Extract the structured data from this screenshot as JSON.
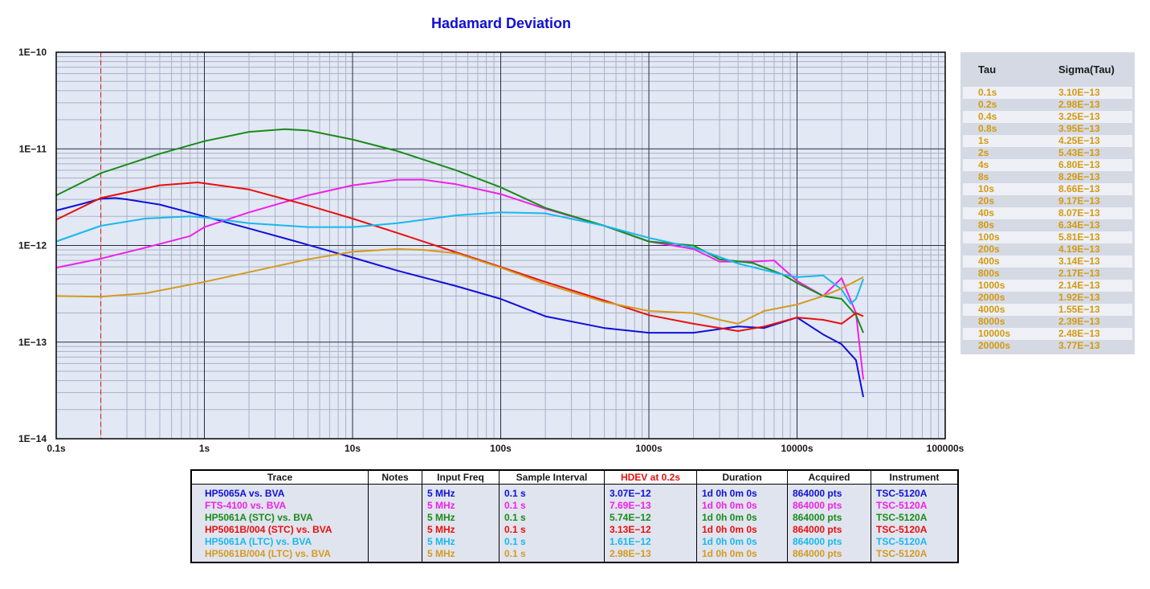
{
  "chart_data": {
    "type": "line",
    "title": "Hadamard Deviation",
    "xscale": "log",
    "yscale": "log",
    "xlim": [
      0.1,
      100000
    ],
    "ylim": [
      1e-14,
      1e-10
    ],
    "x_tick_labels": [
      "0.1s",
      "1s",
      "10s",
      "100s",
      "1000s",
      "10000s",
      "100000s"
    ],
    "y_tick_labels": [
      "1E−10",
      "1E−11",
      "1E−12",
      "1E−13",
      "1E−14"
    ],
    "grid": true,
    "marker_line_x": 0.2,
    "series": [
      {
        "name": "HP5065A vs. BVA",
        "color": "#1010d8",
        "x": [
          0.1,
          0.15,
          0.2,
          0.25,
          0.3,
          0.5,
          1,
          2,
          4,
          10,
          20,
          50,
          100,
          200,
          500,
          1000,
          2000,
          4000,
          6000,
          10000,
          15000,
          20000,
          25000,
          28000
        ],
        "y": [
          2.3e-12,
          2.7e-12,
          3.05e-12,
          3.1e-12,
          3e-12,
          2.65e-12,
          2e-12,
          1.5e-12,
          1.12e-12,
          7.5e-13,
          5.5e-13,
          3.8e-13,
          2.8e-13,
          1.85e-13,
          1.4e-13,
          1.25e-13,
          1.25e-13,
          1.45e-13,
          1.4e-13,
          1.8e-13,
          1.2e-13,
          9.5e-14,
          6.5e-14,
          2.7e-14
        ]
      },
      {
        "name": "FTS-4100 vs. BVA",
        "color": "#f020e8",
        "x": [
          0.1,
          0.2,
          0.4,
          0.8,
          1,
          2,
          5,
          10,
          20,
          30,
          50,
          100,
          200,
          500,
          1000,
          2000,
          3000,
          5000,
          7000,
          10000,
          15000,
          20000,
          25000,
          28000
        ],
        "y": [
          5.9e-13,
          7.3e-13,
          9.5e-13,
          1.25e-12,
          1.55e-12,
          2.2e-12,
          3.3e-12,
          4.2e-12,
          4.8e-12,
          4.8e-12,
          4.3e-12,
          3.4e-12,
          2.4e-12,
          1.6e-12,
          1.1e-12,
          9.2e-13,
          6.8e-13,
          6.8e-13,
          7e-13,
          4.3e-13,
          3e-13,
          4.6e-13,
          2e-13,
          4.1e-14
        ]
      },
      {
        "name": "HP5061A (STC) vs. BVA",
        "color": "#1a8a1a",
        "x": [
          0.1,
          0.2,
          0.5,
          1,
          2,
          3.5,
          5,
          10,
          20,
          50,
          100,
          200,
          500,
          1000,
          2000,
          3000,
          5000,
          8000,
          10000,
          15000,
          20000,
          25000,
          28000
        ],
        "y": [
          3.3e-12,
          5.6e-12,
          8.9e-12,
          1.2e-11,
          1.5e-11,
          1.6e-11,
          1.55e-11,
          1.25e-11,
          9.5e-12,
          6e-12,
          4e-12,
          2.45e-12,
          1.6e-12,
          1.1e-12,
          1e-12,
          7.2e-13,
          6.6e-13,
          5e-13,
          4.1e-13,
          3e-13,
          2.8e-13,
          1.9e-13,
          1.25e-13
        ]
      },
      {
        "name": "HP5061B/004 (STC) vs. BVA",
        "color": "#e81010",
        "x": [
          0.1,
          0.2,
          0.5,
          0.9,
          1,
          2,
          5,
          10,
          20,
          50,
          100,
          200,
          500,
          1000,
          2000,
          4000,
          6000,
          10000,
          15000,
          20000,
          25000,
          28000
        ],
        "y": [
          1.85e-12,
          3.1e-12,
          4.2e-12,
          4.5e-12,
          4.4e-12,
          3.8e-12,
          2.6e-12,
          1.9e-12,
          1.35e-12,
          8.5e-13,
          6e-13,
          4.2e-13,
          2.7e-13,
          1.9e-13,
          1.55e-13,
          1.3e-13,
          1.45e-13,
          1.8e-13,
          1.7e-13,
          1.55e-13,
          2e-13,
          1.85e-13
        ]
      },
      {
        "name": "HP5061A (LTC) vs. BVA",
        "color": "#18b8ee",
        "x": [
          0.1,
          0.2,
          0.4,
          0.8,
          1,
          2,
          5,
          10,
          20,
          50,
          100,
          200,
          500,
          1000,
          2000,
          4000,
          8000,
          10000,
          15000,
          20000,
          23000,
          25000,
          28000
        ],
        "y": [
          1.1e-12,
          1.6e-12,
          1.9e-12,
          2e-12,
          1.95e-12,
          1.7e-12,
          1.55e-12,
          1.55e-12,
          1.7e-12,
          2.05e-12,
          2.2e-12,
          2.15e-12,
          1.6e-12,
          1.2e-12,
          9.5e-13,
          6.5e-13,
          5e-13,
          4.7e-13,
          4.9e-13,
          3.5e-13,
          2.5e-13,
          2.8e-13,
          4.5e-13
        ]
      },
      {
        "name": "HP5061B/004 (LTC) vs. BVA",
        "color": "#d49a20",
        "x": [
          0.1,
          0.2,
          0.4,
          1,
          2,
          5,
          10,
          20,
          30,
          50,
          100,
          200,
          500,
          1000,
          2000,
          3000,
          4000,
          6000,
          10000,
          15000,
          20000,
          28000
        ],
        "y": [
          3e-13,
          2.95e-13,
          3.2e-13,
          4.2e-13,
          5.3e-13,
          7.2e-13,
          8.6e-13,
          9.2e-13,
          9e-13,
          8.3e-13,
          5.9e-13,
          4e-13,
          2.6e-13,
          2.1e-13,
          2e-13,
          1.7e-13,
          1.55e-13,
          2.1e-13,
          2.45e-13,
          3e-13,
          3.6e-13,
          4.7e-13
        ]
      }
    ]
  },
  "tau_table": {
    "header_tau": "Tau",
    "header_sigma": "Sigma(Tau)",
    "rows": [
      {
        "tau": "0.1s",
        "sigma": "3.10E−13"
      },
      {
        "tau": "0.2s",
        "sigma": "2.98E−13"
      },
      {
        "tau": "0.4s",
        "sigma": "3.25E−13"
      },
      {
        "tau": "0.8s",
        "sigma": "3.95E−13"
      },
      {
        "tau": "1s",
        "sigma": "4.25E−13"
      },
      {
        "tau": "2s",
        "sigma": "5.43E−13"
      },
      {
        "tau": "4s",
        "sigma": "6.80E−13"
      },
      {
        "tau": "8s",
        "sigma": "8.29E−13"
      },
      {
        "tau": "10s",
        "sigma": "8.66E−13"
      },
      {
        "tau": "20s",
        "sigma": "9.17E−13"
      },
      {
        "tau": "40s",
        "sigma": "8.07E−13"
      },
      {
        "tau": "80s",
        "sigma": "6.34E−13"
      },
      {
        "tau": "100s",
        "sigma": "5.81E−13"
      },
      {
        "tau": "200s",
        "sigma": "4.19E−13"
      },
      {
        "tau": "400s",
        "sigma": "3.14E−13"
      },
      {
        "tau": "800s",
        "sigma": "2.17E−13"
      },
      {
        "tau": "1000s",
        "sigma": "2.14E−13"
      },
      {
        "tau": "2000s",
        "sigma": "1.92E−13"
      },
      {
        "tau": "4000s",
        "sigma": "1.55E−13"
      },
      {
        "tau": "8000s",
        "sigma": "2.39E−13"
      },
      {
        "tau": "10000s",
        "sigma": "2.48E−13"
      },
      {
        "tau": "20000s",
        "sigma": "3.77E−13"
      }
    ]
  },
  "trace_table": {
    "headers": [
      "Trace",
      "Notes",
      "Input Freq",
      "Sample Interval",
      "HDEV at 0.2s",
      "Duration",
      "Acquired",
      "Instrument"
    ],
    "hdev_header_color": "#e81010",
    "rows": [
      {
        "trace": "HP5065A vs. BVA",
        "notes": "",
        "freq": "5 MHz",
        "interval": "0.1 s",
        "hdev": "3.07E−12",
        "duration": "1d 0h 0m 0s",
        "acquired": "864000 pts",
        "instrument": "TSC-5120A",
        "color": "#1010d8"
      },
      {
        "trace": "FTS-4100 vs. BVA",
        "notes": "",
        "freq": "5 MHz",
        "interval": "0.1 s",
        "hdev": "7.69E−13",
        "duration": "1d 0h 0m 0s",
        "acquired": "864000 pts",
        "instrument": "TSC-5120A",
        "color": "#f020e8"
      },
      {
        "trace": "HP5061A (STC) vs. BVA",
        "notes": "",
        "freq": "5 MHz",
        "interval": "0.1 s",
        "hdev": "5.74E−12",
        "duration": "1d 0h 0m 0s",
        "acquired": "864000 pts",
        "instrument": "TSC-5120A",
        "color": "#1a8a1a"
      },
      {
        "trace": "HP5061B/004 (STC) vs. BVA",
        "notes": "",
        "freq": "5 MHz",
        "interval": "0.1 s",
        "hdev": "3.13E−12",
        "duration": "1d 0h 0m 0s",
        "acquired": "864000 pts",
        "instrument": "TSC-5120A",
        "color": "#e81010"
      },
      {
        "trace": "HP5061A (LTC) vs. BVA",
        "notes": "",
        "freq": "5 MHz",
        "interval": "0.1 s",
        "hdev": "1.61E−12",
        "duration": "1d 0h 0m 0s",
        "acquired": "864000 pts",
        "instrument": "TSC-5120A",
        "color": "#18b8ee"
      },
      {
        "trace": "HP5061B/004 (LTC) vs. BVA",
        "notes": "",
        "freq": "5 MHz",
        "interval": "0.1 s",
        "hdev": "2.98E−13",
        "duration": "1d 0h 0m 0s",
        "acquired": "864000 pts",
        "instrument": "TSC-5120A",
        "color": "#d49a20"
      }
    ]
  }
}
